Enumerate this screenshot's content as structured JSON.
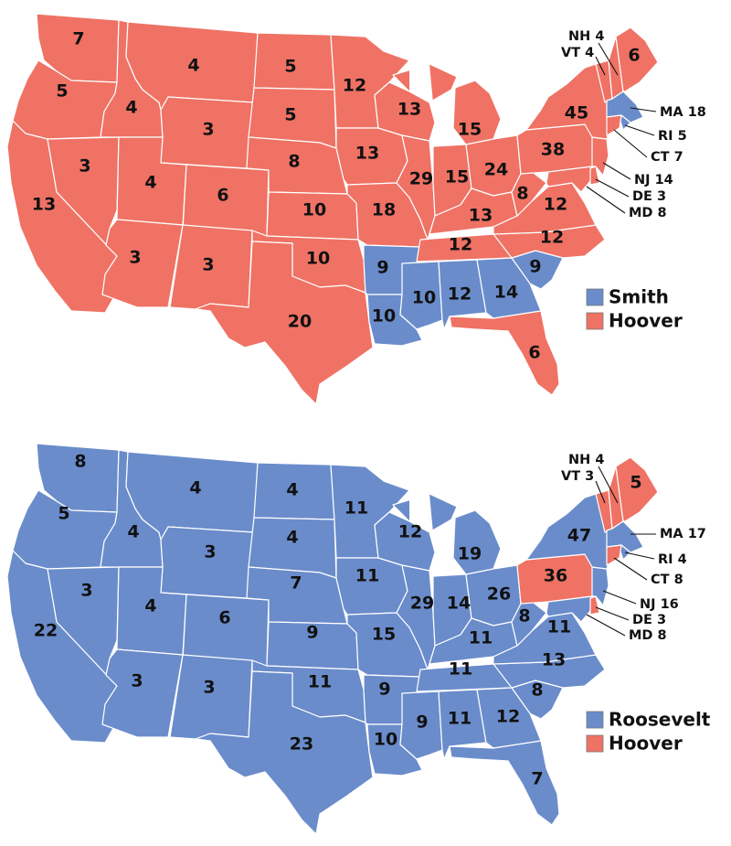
{
  "colors": {
    "smith": "#6a8ccb",
    "roosevelt": "#6a8ccb",
    "hoover": "#ef7264"
  },
  "map_1928": {
    "legend": {
      "smith": "Smith",
      "hoover": "Hoover"
    },
    "labels": {
      "WA": "7",
      "OR": "5",
      "CA": "13",
      "ID": "4",
      "NV": "3",
      "MT": "4",
      "WY": "3",
      "UT": "4",
      "CO": "6",
      "AZ": "3",
      "NM": "3",
      "ND": "5",
      "SD": "5",
      "NE": "8",
      "KS": "10",
      "OK": "10",
      "TX": "20",
      "MN": "12",
      "IA": "13",
      "MO": "18",
      "AR": "9",
      "LA": "10",
      "WI": "13",
      "IL": "29",
      "MI": "15",
      "IN": "15",
      "OH": "24",
      "KY": "13",
      "TN": "12",
      "MS": "10",
      "AL": "12",
      "GA": "14",
      "FL": "6",
      "SC": "9",
      "NC": "12",
      "VA": "12",
      "WV": "8",
      "PA": "38",
      "NY": "45",
      "ME": "6"
    },
    "small_states": {
      "NH": "NH 4",
      "VT": "VT 4",
      "MA": "MA 18",
      "RI": "RI 5",
      "CT": "CT 7",
      "NJ": "NJ 14",
      "DE": "DE 3",
      "MD": "MD 8"
    }
  },
  "map_1932": {
    "legend": {
      "roosevelt": "Roosevelt",
      "hoover": "Hoover"
    },
    "labels": {
      "WA": "8",
      "OR": "5",
      "CA": "22",
      "ID": "4",
      "NV": "3",
      "MT": "4",
      "WY": "3",
      "UT": "4",
      "CO": "6",
      "AZ": "3",
      "NM": "3",
      "ND": "4",
      "SD": "4",
      "NE": "7",
      "KS": "9",
      "OK": "11",
      "TX": "23",
      "MN": "11",
      "IA": "11",
      "MO": "15",
      "AR": "9",
      "LA": "10",
      "WI": "12",
      "IL": "29",
      "MI": "19",
      "IN": "14",
      "OH": "26",
      "KY": "11",
      "TN": "11",
      "MS": "9",
      "AL": "11",
      "GA": "12",
      "FL": "7",
      "SC": "8",
      "NC": "13",
      "VA": "11",
      "WV": "8",
      "PA": "36",
      "NY": "47",
      "ME": "5"
    },
    "small_states": {
      "NH": "NH 4",
      "VT": "VT 3",
      "MA": "MA 17",
      "RI": "RI 4",
      "CT": "CT 8",
      "NJ": "NJ 16",
      "DE": "DE 3",
      "MD": "MD 8"
    }
  }
}
